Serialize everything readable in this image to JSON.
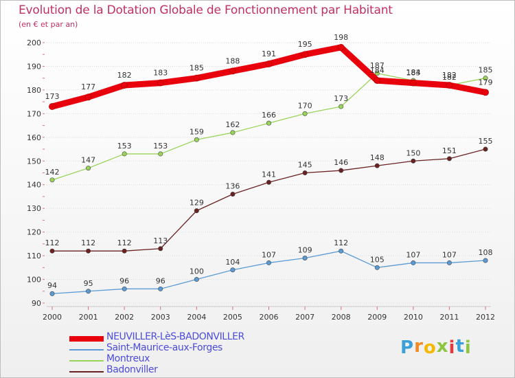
{
  "title": "Evolution de la Dotation Globale de Fonctionnement par Habitant",
  "subtitle": "(en € et par an)",
  "logo": {
    "letters": [
      "P",
      "r",
      "o",
      "x",
      "i",
      "t",
      "i"
    ],
    "colors": [
      "#3aa0d8",
      "#f08a24",
      "#f5b800",
      "#8cc63f",
      "#e23b3b",
      "#3aa0d8",
      "#8cc63f"
    ]
  },
  "chart_data": {
    "type": "line",
    "title": "Evolution de la Dotation Globale de Fonctionnement par Habitant",
    "subtitle": "(en € et par an)",
    "x": [
      "2000",
      "2001",
      "2002",
      "2003",
      "2004",
      "2005",
      "2006",
      "2007",
      "2008",
      "2009",
      "2010",
      "2011",
      "2012"
    ],
    "ylim": [
      90,
      200
    ],
    "yticks": [
      90,
      100,
      110,
      120,
      130,
      140,
      150,
      160,
      170,
      180,
      190,
      200
    ],
    "grid": "horizontal",
    "legend_position": "bottom",
    "series": [
      {
        "name": "NEUVILLER-LèS-BADONVILLER",
        "values": [
          173,
          177,
          182,
          183,
          185,
          188,
          191,
          195,
          198,
          184,
          183,
          182,
          179
        ],
        "color": "#e8000d",
        "style": "thick"
      },
      {
        "name": "Saint-Maurice-aux-Forges",
        "values": [
          94,
          95,
          96,
          96,
          100,
          104,
          107,
          109,
          112,
          105,
          107,
          107,
          108
        ],
        "color": "#5b9bd5",
        "style": "thin"
      },
      {
        "name": "Montreux",
        "values": [
          142,
          147,
          153,
          153,
          159,
          162,
          166,
          170,
          173,
          187,
          184,
          182,
          185
        ],
        "color": "#9ad35a",
        "style": "thin"
      },
      {
        "name": "Badonviller",
        "values": [
          112,
          112,
          112,
          113,
          129,
          136,
          141,
          145,
          146,
          148,
          150,
          151,
          155
        ],
        "color": "#6b2121",
        "style": "thin"
      }
    ]
  }
}
